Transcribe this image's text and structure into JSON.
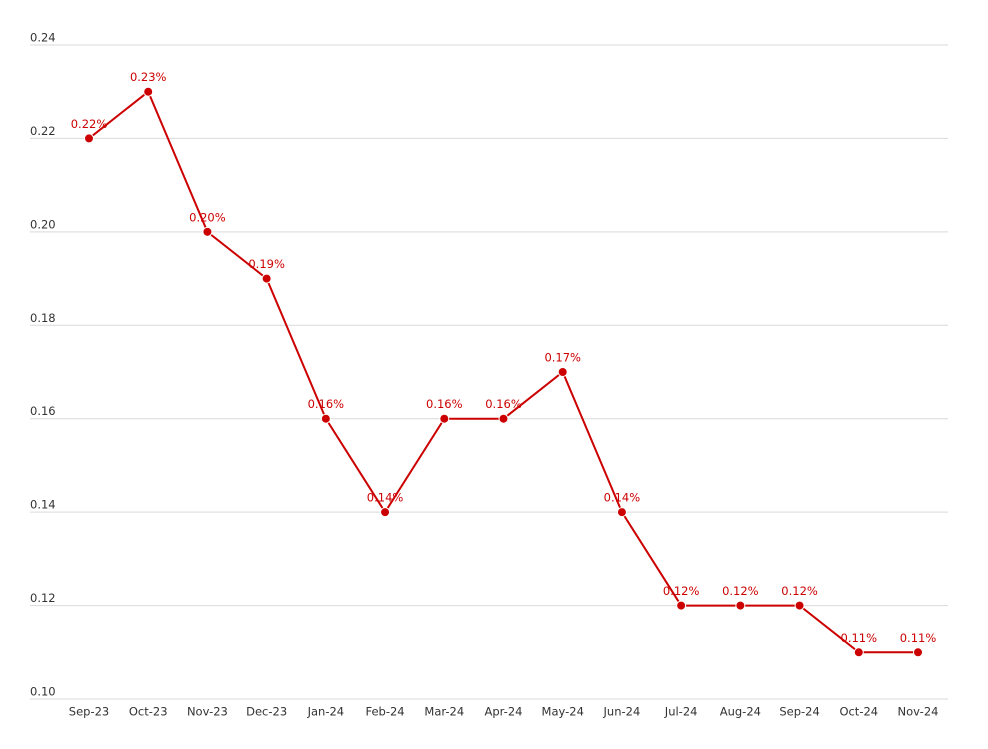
{
  "chart_data": {
    "type": "line",
    "categories": [
      "Sep-23",
      "Oct-23",
      "Nov-23",
      "Dec-23",
      "Jan-24",
      "Feb-24",
      "Mar-24",
      "Apr-24",
      "May-24",
      "Jun-24",
      "Jul-24",
      "Aug-24",
      "Sep-24",
      "Oct-24",
      "Nov-24"
    ],
    "series": [
      {
        "color": "#cc0000",
        "values": [
          0.22,
          0.23,
          0.2,
          0.19,
          0.16,
          0.14,
          0.16,
          0.16,
          0.17,
          0.14,
          0.12,
          0.12,
          0.12,
          0.11,
          0.11
        ],
        "value_labels": [
          "0.22%",
          "0.23%",
          "0.20%",
          "0.19%",
          "0.16%",
          "0.14%",
          "0.16%",
          "0.16%",
          "0.17%",
          "0.14%",
          "0.12%",
          "0.12%",
          "0.12%",
          "0.11%",
          "0.11%"
        ]
      }
    ],
    "ylim": [
      0.1,
      0.24
    ],
    "yticks": [
      {
        "value": 0.1,
        "label": "0.10"
      },
      0.12,
      0.14,
      0.16,
      0.18,
      {
        "value": 0.2,
        "label": "0.20"
      },
      0.22,
      0.24
    ],
    "grid": true
  }
}
